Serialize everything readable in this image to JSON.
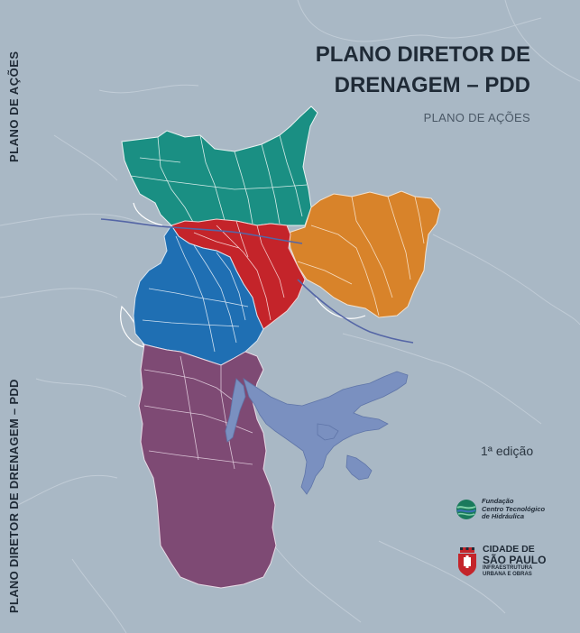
{
  "spine": {
    "top_label": "PLANO DE AÇÕES",
    "bottom_label": "PLANO DIRETOR DE DRENAGEM – PDD"
  },
  "cover": {
    "title_line1": "PLANO DIRETOR DE",
    "title_line2": "DRENAGEM – PDD",
    "subtitle": "PLANO DE AÇÕES",
    "edition": "1ª edição"
  },
  "logos": {
    "fcth_line1": "Fundação",
    "fcth_line2": "Centro Tecnológico",
    "fcth_line3": "de Hidráulica",
    "sp_line1": "CIDADE DE",
    "sp_line2": "SÃO PAULO",
    "sp_line3": "INFRAESTRUTURA",
    "sp_line4": "URBANA E OBRAS"
  },
  "colors": {
    "background": "#a9b8c5",
    "region_north": "#1a8f83",
    "region_east": "#d8832a",
    "region_center": "#c4242a",
    "region_west": "#1f6fb3",
    "region_south": "#7e4a74",
    "reservoir": "#7a90c0"
  }
}
